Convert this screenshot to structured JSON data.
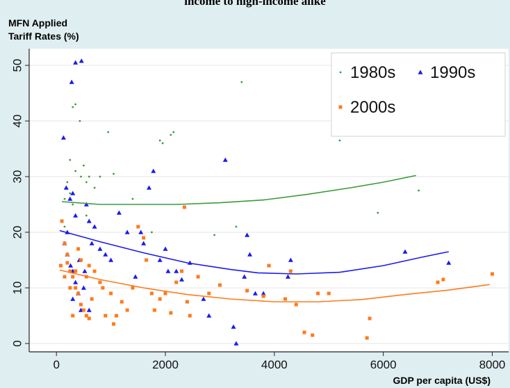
{
  "chart_data": {
    "type": "scatter",
    "title": "income to high-income alike",
    "ylabel_lines": [
      "MFN Applied",
      "Tariff Rates (%)"
    ],
    "xlabel": "GDP per capita (US$)",
    "xlim": [
      -500,
      8300
    ],
    "ylim": [
      -1.5,
      53
    ],
    "x_ticks": [
      0,
      2000,
      4000,
      6000,
      8000
    ],
    "y_ticks": [
      0,
      10,
      20,
      30,
      40,
      50
    ],
    "grid": true,
    "legend_position": "top-right",
    "series": [
      {
        "name": "1980s",
        "color": "#3a9a3a",
        "marker": "dot",
        "points": [
          [
            150,
            26
          ],
          [
            200,
            29
          ],
          [
            250,
            33
          ],
          [
            300,
            42.5
          ],
          [
            350,
            43
          ],
          [
            350,
            31
          ],
          [
            430,
            40
          ],
          [
            500,
            32
          ],
          [
            550,
            23
          ],
          [
            600,
            30
          ],
          [
            700,
            28
          ],
          [
            800,
            30
          ],
          [
            950,
            38
          ],
          [
            1050,
            30.5
          ],
          [
            1400,
            26
          ],
          [
            1750,
            20
          ],
          [
            1900,
            36.5
          ],
          [
            1950,
            36
          ],
          [
            2100,
            37.5
          ],
          [
            2150,
            38
          ],
          [
            2900,
            19.5
          ],
          [
            3400,
            47
          ],
          [
            3300,
            21
          ],
          [
            5200,
            36.5
          ],
          [
            5900,
            23.5
          ],
          [
            6650,
            27.5
          ],
          [
            250,
            27
          ],
          [
            450,
            30
          ],
          [
            150,
            21
          ],
          [
            300,
            25
          ],
          [
            550,
            29
          ]
        ],
        "trend": [
          [
            100,
            25.5
          ],
          [
            800,
            25
          ],
          [
            1500,
            25
          ],
          [
            2200,
            25
          ],
          [
            3000,
            25.3
          ],
          [
            3800,
            25.8
          ],
          [
            4600,
            26.8
          ],
          [
            5400,
            28
          ],
          [
            6000,
            29
          ],
          [
            6600,
            30.2
          ]
        ]
      },
      {
        "name": "1990s",
        "color": "#1a1aee",
        "marker": "triangle",
        "points": [
          [
            130,
            37
          ],
          [
            180,
            28
          ],
          [
            200,
            20
          ],
          [
            250,
            26
          ],
          [
            280,
            47
          ],
          [
            300,
            27
          ],
          [
            350,
            50.5
          ],
          [
            460,
            50.8
          ],
          [
            150,
            18
          ],
          [
            200,
            16
          ],
          [
            260,
            14
          ],
          [
            300,
            13
          ],
          [
            350,
            11
          ],
          [
            400,
            9
          ],
          [
            450,
            6
          ],
          [
            500,
            10
          ],
          [
            550,
            25
          ],
          [
            600,
            22
          ],
          [
            650,
            18
          ],
          [
            700,
            21
          ],
          [
            800,
            17
          ],
          [
            900,
            16
          ],
          [
            1000,
            15
          ],
          [
            1150,
            23.5
          ],
          [
            1300,
            20
          ],
          [
            1450,
            12
          ],
          [
            1550,
            20
          ],
          [
            1600,
            18
          ],
          [
            1700,
            28
          ],
          [
            1780,
            31
          ],
          [
            1900,
            15
          ],
          [
            2000,
            17
          ],
          [
            2050,
            13
          ],
          [
            2200,
            13
          ],
          [
            2300,
            11.5
          ],
          [
            2450,
            14.5
          ],
          [
            2700,
            8
          ],
          [
            2800,
            5
          ],
          [
            3100,
            33
          ],
          [
            3250,
            3
          ],
          [
            3300,
            0
          ],
          [
            3450,
            12
          ],
          [
            3500,
            19.5
          ],
          [
            3550,
            16
          ],
          [
            3650,
            9
          ],
          [
            3800,
            9
          ],
          [
            4300,
            15
          ],
          [
            4250,
            12
          ],
          [
            6400,
            16.5
          ],
          [
            7200,
            14.5
          ],
          [
            350,
            23
          ],
          [
            420,
            15
          ],
          [
            520,
            13
          ],
          [
            600,
            6
          ],
          [
            300,
            8
          ]
        ],
        "trend": [
          [
            60,
            20.3
          ],
          [
            800,
            18.3
          ],
          [
            1600,
            16.3
          ],
          [
            2400,
            14.5
          ],
          [
            3200,
            13.3
          ],
          [
            3700,
            12.7
          ],
          [
            4400,
            12.5
          ],
          [
            5200,
            12.8
          ],
          [
            6000,
            14
          ],
          [
            6700,
            15.5
          ],
          [
            7200,
            16.5
          ]
        ]
      },
      {
        "name": "2000s",
        "color": "#ff7a1a",
        "marker": "square",
        "points": [
          [
            80,
            14
          ],
          [
            150,
            18
          ],
          [
            200,
            16
          ],
          [
            250,
            13
          ],
          [
            300,
            12
          ],
          [
            350,
            10
          ],
          [
            400,
            9
          ],
          [
            450,
            7
          ],
          [
            500,
            6
          ],
          [
            550,
            5
          ],
          [
            600,
            4.5
          ],
          [
            650,
            8
          ],
          [
            700,
            13
          ],
          [
            800,
            11
          ],
          [
            850,
            10
          ],
          [
            900,
            5
          ],
          [
            1000,
            9
          ],
          [
            1050,
            3.5
          ],
          [
            1100,
            5
          ],
          [
            1200,
            7.5
          ],
          [
            1300,
            6
          ],
          [
            1400,
            10
          ],
          [
            1500,
            21
          ],
          [
            1600,
            19
          ],
          [
            1650,
            15
          ],
          [
            1750,
            9
          ],
          [
            1800,
            6
          ],
          [
            1900,
            8
          ],
          [
            2000,
            9
          ],
          [
            2100,
            5.5
          ],
          [
            2200,
            11
          ],
          [
            2300,
            13
          ],
          [
            2350,
            24.5
          ],
          [
            2400,
            7.5
          ],
          [
            2450,
            5
          ],
          [
            2600,
            12
          ],
          [
            2800,
            9
          ],
          [
            3000,
            10.5
          ],
          [
            3500,
            9.5
          ],
          [
            3800,
            8.5
          ],
          [
            3900,
            14
          ],
          [
            4200,
            8
          ],
          [
            4300,
            13
          ],
          [
            4400,
            7
          ],
          [
            4550,
            2
          ],
          [
            4700,
            1.5
          ],
          [
            4800,
            9
          ],
          [
            5000,
            9
          ],
          [
            5700,
            1
          ],
          [
            5750,
            4.5
          ],
          [
            7000,
            11
          ],
          [
            7100,
            11.5
          ],
          [
            8000,
            12.5
          ],
          [
            100,
            22
          ],
          [
            150,
            12
          ],
          [
            200,
            14.5
          ],
          [
            250,
            10
          ],
          [
            350,
            13
          ],
          [
            450,
            15
          ],
          [
            550,
            12
          ],
          [
            600,
            14
          ],
          [
            300,
            5
          ],
          [
            400,
            17
          ]
        ],
        "trend": [
          [
            60,
            13.2
          ],
          [
            800,
            11.5
          ],
          [
            1600,
            10
          ],
          [
            2400,
            8.8
          ],
          [
            3200,
            8
          ],
          [
            4000,
            7.5
          ],
          [
            4800,
            7.5
          ],
          [
            5600,
            7.9
          ],
          [
            6400,
            8.8
          ],
          [
            7200,
            9.6
          ],
          [
            7950,
            10.6
          ]
        ]
      }
    ]
  },
  "colors": {
    "background": "#dfeef0",
    "plot_background": "#ffffff",
    "grid": "#e4e4e4",
    "axis": "#222222"
  }
}
